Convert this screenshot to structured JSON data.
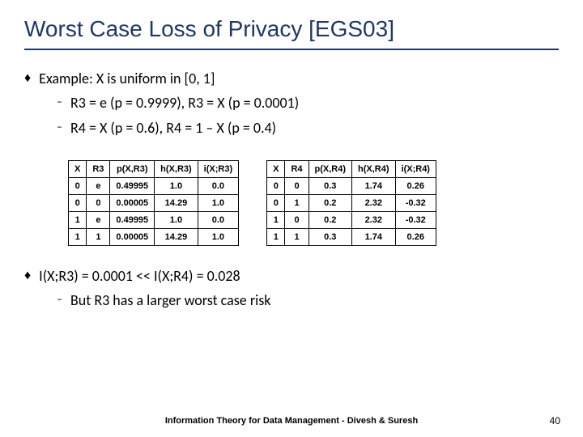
{
  "title": "Worst Case Loss of Privacy [EGS03]",
  "bullet1": "Example: X is uniform in [0, 1]",
  "sub1a": "R3 = e (p = 0.9999), R3 = X (p = 0.0001)",
  "sub1b": "R4 = X (p = 0.6), R4 = 1 – X (p = 0.4)",
  "table_left": {
    "headers": [
      "X",
      "R3",
      "p(X,R3)",
      "h(X,R3)",
      "i(X;R3)"
    ],
    "rows": [
      [
        "0",
        "e",
        "0.49995",
        "1.0",
        "0.0"
      ],
      [
        "0",
        "0",
        "0.00005",
        "14.29",
        "1.0"
      ],
      [
        "1",
        "e",
        "0.49995",
        "1.0",
        "0.0"
      ],
      [
        "1",
        "1",
        "0.00005",
        "14.29",
        "1.0"
      ]
    ]
  },
  "table_right": {
    "headers": [
      "X",
      "R4",
      "p(X,R4)",
      "h(X,R4)",
      "i(X;R4)"
    ],
    "rows": [
      [
        "0",
        "0",
        "0.3",
        "1.74",
        "0.26"
      ],
      [
        "0",
        "1",
        "0.2",
        "2.32",
        "-0.32"
      ],
      [
        "1",
        "0",
        "0.2",
        "2.32",
        "-0.32"
      ],
      [
        "1",
        "1",
        "0.3",
        "1.74",
        "0.26"
      ]
    ]
  },
  "bullet2": "I(X;R3) = 0.0001  <<  I(X;R4) = 0.028",
  "sub2a": "But R3 has a larger worst case risk",
  "footer_text": "Information Theory for Data Management - Divesh & Suresh",
  "page_num": "40",
  "markers": {
    "diamond": "♦",
    "dash": "–"
  }
}
